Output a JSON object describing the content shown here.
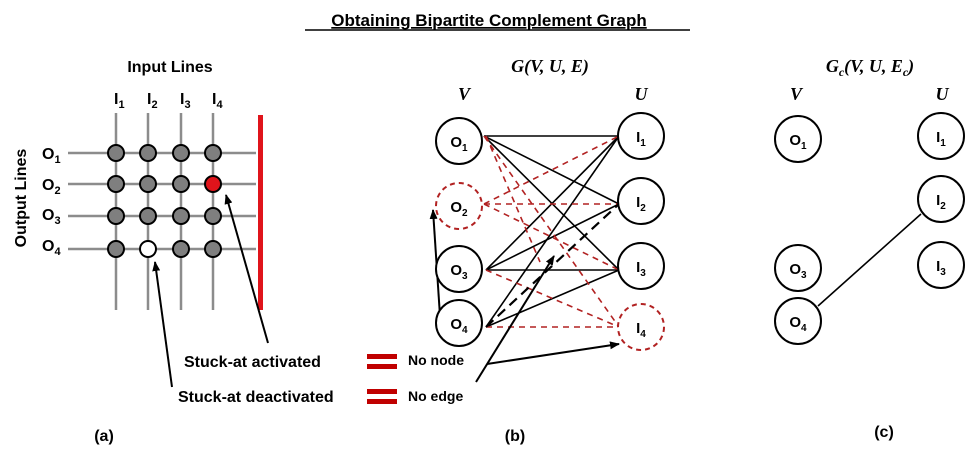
{
  "title": "Obtaining Bipartite Complement Graph",
  "panel_a": {
    "input_lines_label": "Input Lines",
    "output_lines_label": "Output Lines",
    "inputs": [
      {
        "name": "I",
        "sub": "1"
      },
      {
        "name": "I",
        "sub": "2"
      },
      {
        "name": "I",
        "sub": "3"
      },
      {
        "name": "I",
        "sub": "4"
      }
    ],
    "outputs": [
      {
        "name": "O",
        "sub": "1"
      },
      {
        "name": "O",
        "sub": "2"
      },
      {
        "name": "O",
        "sub": "3"
      },
      {
        "name": "O",
        "sub": "4"
      }
    ],
    "caption": "(a)"
  },
  "legend": {
    "stuck_activated": "Stuck-at activated",
    "stuck_deactivated": "Stuck-at deactivated",
    "no_node": "No node",
    "no_edge": "No edge"
  },
  "panel_b": {
    "graph_title": {
      "g": "G",
      "args": "(V, U, E)"
    },
    "v_label": "V",
    "u_label": "U",
    "caption": "(b)"
  },
  "panel_c": {
    "graph_title": {
      "g": "G",
      "g_sub": "c",
      "args": "(V, U, E",
      "args_sub": "c",
      "close": ")"
    },
    "v_label": "V",
    "u_label": "U",
    "caption": "(c)"
  },
  "colors": {
    "fault_red": "#e0141b",
    "dashed_red": "#b22222",
    "node_gray": "#7f7f7f",
    "wire_gray": "#8c8c8c"
  }
}
